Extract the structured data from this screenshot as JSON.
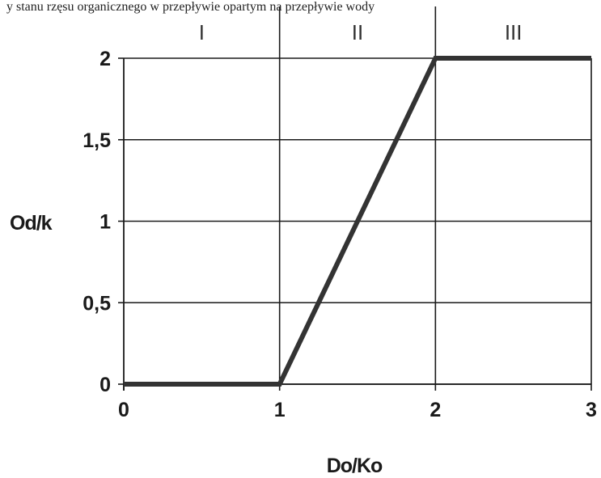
{
  "top_text": "y stanu rzęsu organicznego w przepływie opartym na przepływie wody",
  "chart_data": {
    "type": "line",
    "title": "",
    "xlabel": "Do/Ko",
    "ylabel": "Od/k",
    "xlim": [
      0,
      3
    ],
    "ylim": [
      0,
      2
    ],
    "x_ticks": [
      0,
      1,
      2,
      3
    ],
    "y_ticks": [
      0,
      0.5,
      1,
      1.5,
      2
    ],
    "x_tick_labels": [
      "0",
      "1",
      "2",
      "3"
    ],
    "y_tick_labels": [
      "0",
      "0,5",
      "1",
      "1,5",
      "2"
    ],
    "grid": true,
    "legend": "none",
    "region_labels": [
      {
        "label": "I",
        "x_center": 0.5
      },
      {
        "label": "II",
        "x_center": 1.5
      },
      {
        "label": "III",
        "x_center": 2.5
      }
    ],
    "series": [
      {
        "x": [
          0,
          1,
          2,
          3
        ],
        "y": [
          0,
          0,
          2,
          2
        ]
      }
    ],
    "colors": {
      "line": "#333333",
      "grid": "#1a1a1a"
    }
  }
}
